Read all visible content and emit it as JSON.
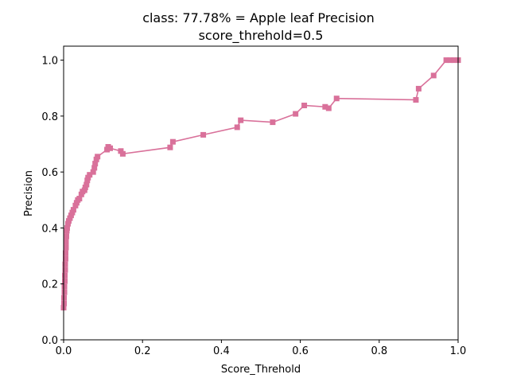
{
  "chart_data": {
    "type": "line",
    "title": "class: 77.78% = Apple leaf Precision",
    "subtitle": "score_threhold=0.5",
    "xlabel": "Score_Threhold",
    "ylabel": "Precision",
    "xlim": [
      0,
      1
    ],
    "ylim": [
      0,
      1.05
    ],
    "x_ticks": [
      "0.0",
      "0.2",
      "0.4",
      "0.6",
      "0.8",
      "1.0"
    ],
    "y_ticks": [
      "0.0",
      "0.2",
      "0.4",
      "0.6",
      "0.8",
      "1.0"
    ],
    "x_tick_values": [
      0,
      0.2,
      0.4,
      0.6,
      0.8,
      1.0
    ],
    "y_tick_values": [
      0,
      0.2,
      0.4,
      0.6,
      0.8,
      1.0
    ],
    "grid": false,
    "legend": "none",
    "color": "#d9719a",
    "marker": "square",
    "series": [
      {
        "points": [
          [
            0.0,
            0.115
          ],
          [
            0.001,
            0.13
          ],
          [
            0.001,
            0.15
          ],
          [
            0.002,
            0.17
          ],
          [
            0.002,
            0.19
          ],
          [
            0.003,
            0.21
          ],
          [
            0.003,
            0.23
          ],
          [
            0.004,
            0.25
          ],
          [
            0.004,
            0.27
          ],
          [
            0.005,
            0.29
          ],
          [
            0.005,
            0.31
          ],
          [
            0.006,
            0.33
          ],
          [
            0.006,
            0.35
          ],
          [
            0.007,
            0.37
          ],
          [
            0.008,
            0.39
          ],
          [
            0.009,
            0.4
          ],
          [
            0.011,
            0.415
          ],
          [
            0.013,
            0.425
          ],
          [
            0.016,
            0.435
          ],
          [
            0.019,
            0.445
          ],
          [
            0.022,
            0.455
          ],
          [
            0.025,
            0.465
          ],
          [
            0.03,
            0.48
          ],
          [
            0.033,
            0.49
          ],
          [
            0.036,
            0.5
          ],
          [
            0.04,
            0.505
          ],
          [
            0.045,
            0.52
          ],
          [
            0.048,
            0.53
          ],
          [
            0.053,
            0.535
          ],
          [
            0.055,
            0.545
          ],
          [
            0.058,
            0.555
          ],
          [
            0.06,
            0.57
          ],
          [
            0.062,
            0.58
          ],
          [
            0.066,
            0.59
          ],
          [
            0.075,
            0.6
          ],
          [
            0.078,
            0.615
          ],
          [
            0.08,
            0.63
          ],
          [
            0.083,
            0.645
          ],
          [
            0.086,
            0.655
          ],
          [
            0.11,
            0.68
          ],
          [
            0.113,
            0.69
          ],
          [
            0.118,
            0.685
          ],
          [
            0.145,
            0.675
          ],
          [
            0.15,
            0.665
          ],
          [
            0.27,
            0.688
          ],
          [
            0.277,
            0.708
          ],
          [
            0.354,
            0.733
          ],
          [
            0.44,
            0.76
          ],
          [
            0.449,
            0.785
          ],
          [
            0.53,
            0.778
          ],
          [
            0.588,
            0.808
          ],
          [
            0.61,
            0.838
          ],
          [
            0.663,
            0.833
          ],
          [
            0.672,
            0.828
          ],
          [
            0.692,
            0.863
          ],
          [
            0.893,
            0.858
          ],
          [
            0.9,
            0.898
          ],
          [
            0.938,
            0.945
          ],
          [
            0.97,
            1.0
          ],
          [
            0.98,
            1.0
          ],
          [
            0.99,
            1.0
          ],
          [
            1.0,
            1.0
          ]
        ]
      }
    ]
  }
}
